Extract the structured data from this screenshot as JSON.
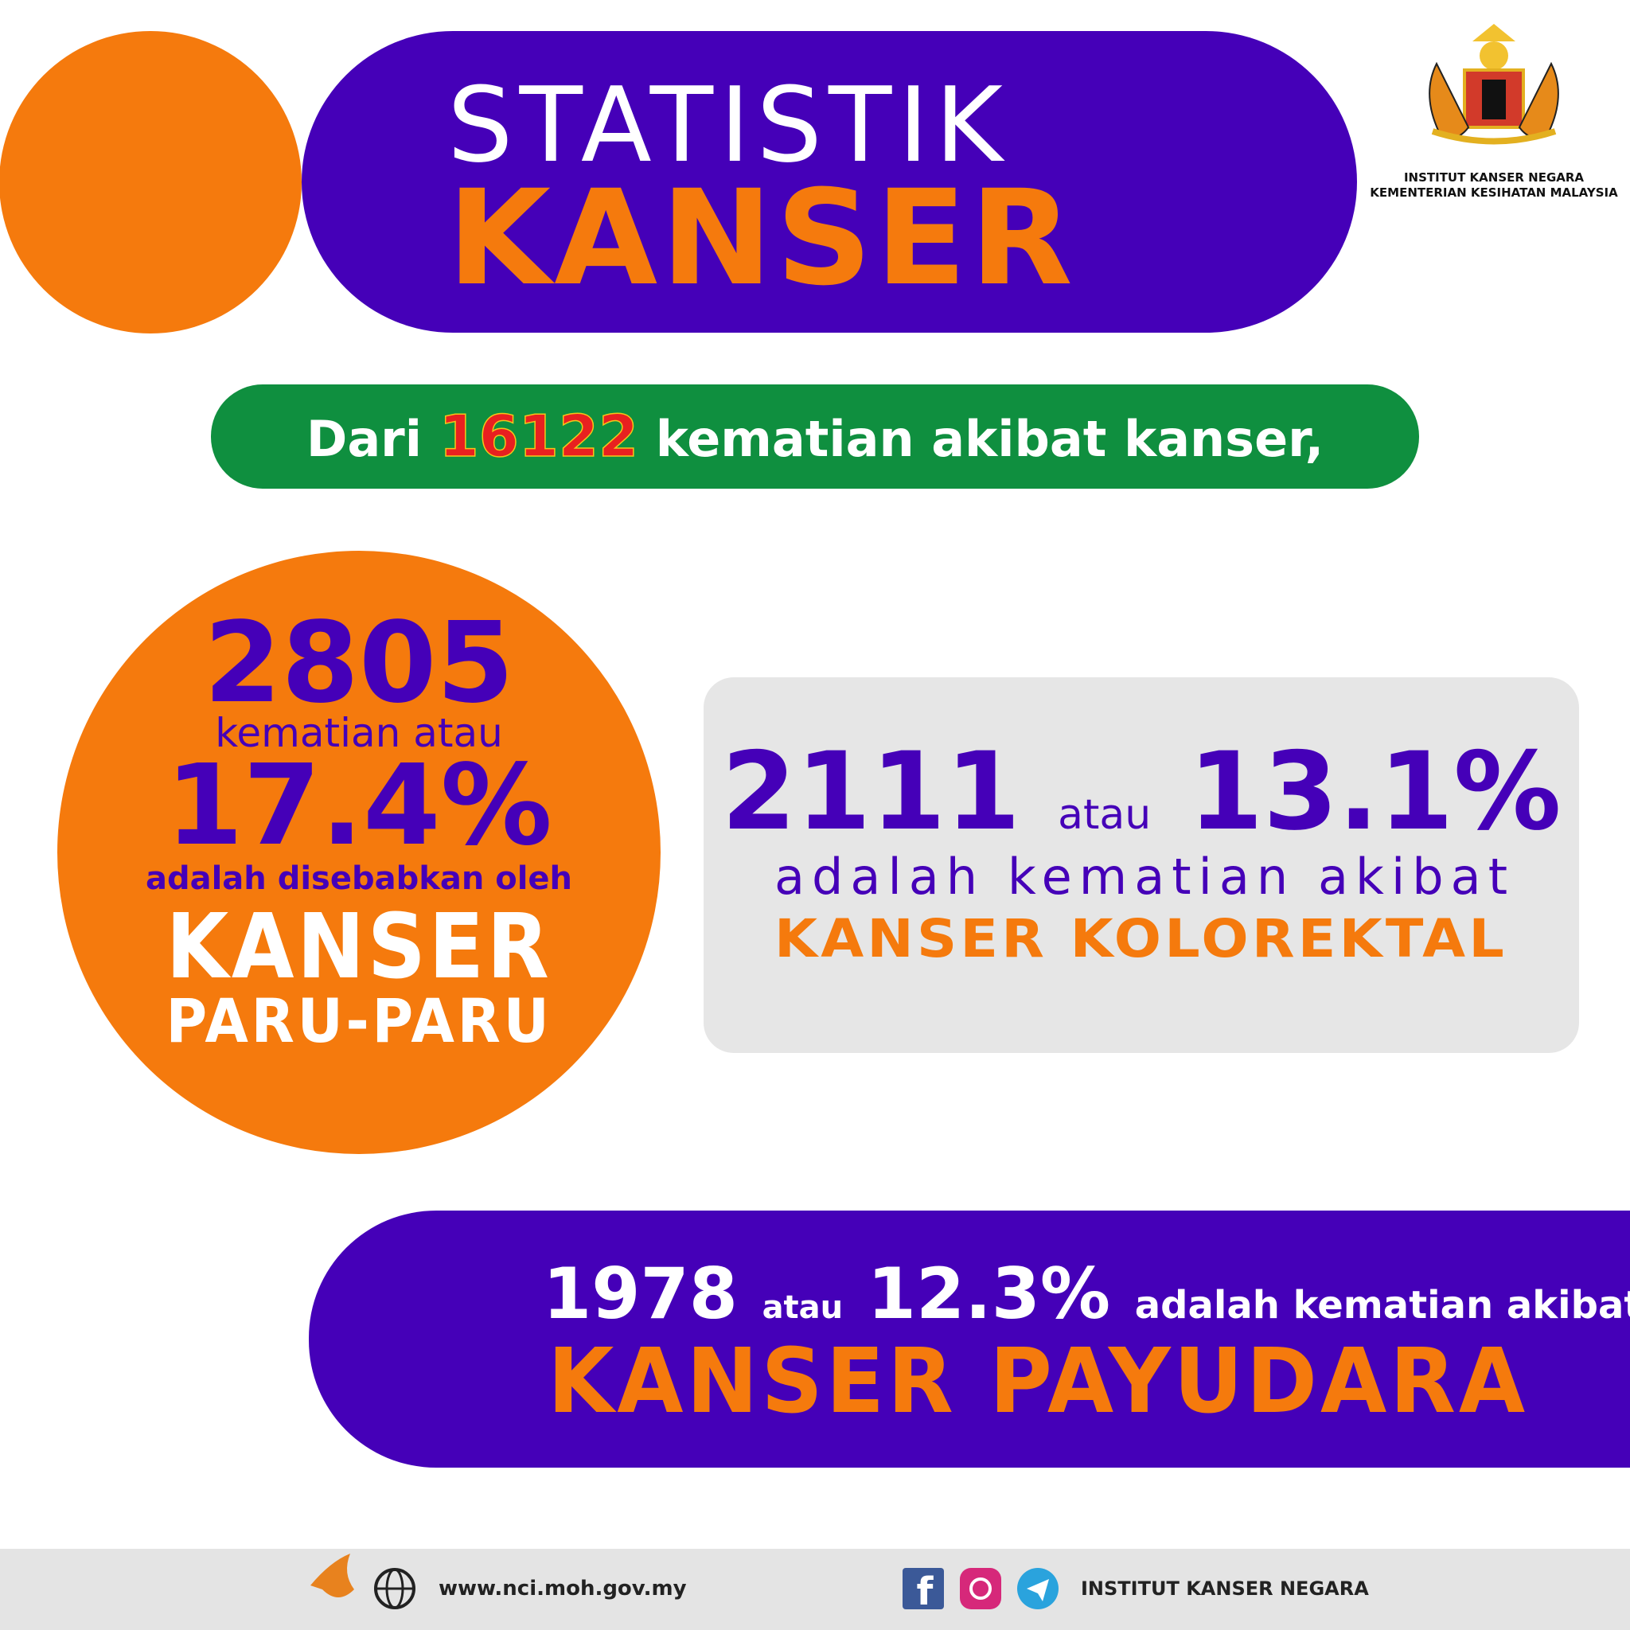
{
  "header": {
    "title_line1": "STATISTIK",
    "title_line2": "KANSER",
    "org_line1": "INSTITUT KANSER NEGARA",
    "org_line2": "KEMENTERIAN KESIHATAN MALAYSIA"
  },
  "intro": {
    "prefix": "Dari",
    "number": "16122",
    "suffix": "kematian akibat kanser,"
  },
  "lung": {
    "number": "2805",
    "text1": "kematian atau",
    "percent": "17.4%",
    "text2": "adalah disebabkan oleh",
    "name1": "KANSER",
    "name2": "PARU-PARU"
  },
  "colorectal": {
    "number": "2111",
    "connector": "atau",
    "percent": "13.1%",
    "text": "adalah kematian akibat",
    "name": "KANSER KOLOREKTAL"
  },
  "breast": {
    "number": "1978",
    "connector": "atau",
    "percent": "12.3%",
    "text": "adalah kematian akibat",
    "name": "KANSER PAYUDARA"
  },
  "footer": {
    "website": "www.nci.moh.gov.my",
    "org": "INSTITUT KANSER NEGARA"
  }
}
